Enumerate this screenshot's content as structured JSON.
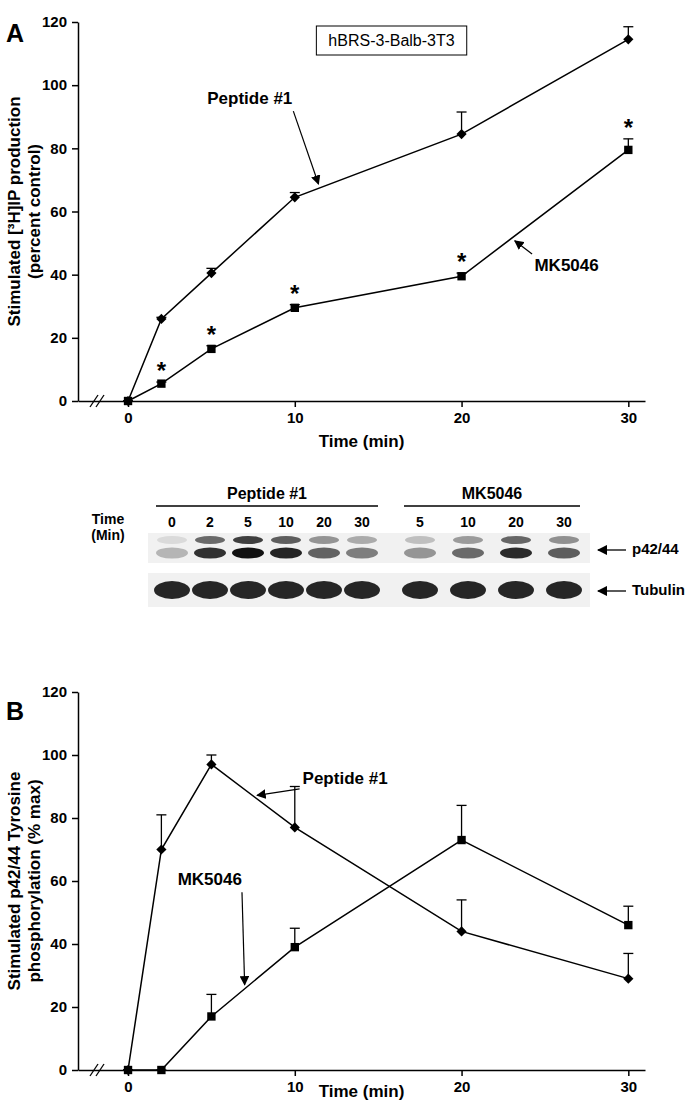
{
  "chart_data": [
    {
      "panel": "A",
      "type": "line",
      "title": "hBRS-3-Balb-3T3",
      "xlabel": "Time (min)",
      "ylabel": [
        "Stimulated [³H]IP production",
        "(percent control)"
      ],
      "xlim": [
        -3,
        31
      ],
      "xticks": [
        0,
        10,
        20,
        30
      ],
      "ylim": [
        0,
        120
      ],
      "yticks": [
        0,
        20,
        40,
        60,
        80,
        100,
        120
      ],
      "x": [
        0,
        2,
        5,
        10,
        20,
        30
      ],
      "series": [
        {
          "name": "Peptide #1",
          "color": "#000000",
          "marker": "diamond",
          "line_style": "solid",
          "values": [
            0,
            26,
            40.5,
            64.5,
            84.5,
            114.5
          ],
          "errors": [
            0,
            0.5,
            1.5,
            1.5,
            7,
            4
          ]
        },
        {
          "name": "MK5046",
          "color": "#000000",
          "marker": "square",
          "line_style": "solid",
          "values": [
            0,
            5.5,
            16.5,
            29.5,
            39.5,
            79.5
          ],
          "errors": [
            0,
            0.5,
            1,
            1,
            1,
            3.5
          ]
        }
      ],
      "significance": {
        "label": "*",
        "series": 1,
        "x": [
          2,
          5,
          10,
          20,
          30
        ]
      }
    },
    {
      "panel": "B",
      "type": "line",
      "xlabel": "Time (min)",
      "ylabel": [
        "Stimulated p42/44 Tyrosine",
        "phosphorylation (% max)"
      ],
      "xlim": [
        -3,
        31
      ],
      "xticks": [
        0,
        10,
        20,
        30
      ],
      "ylim": [
        0,
        120
      ],
      "yticks": [
        0,
        20,
        40,
        60,
        80,
        100,
        120
      ],
      "x": [
        0,
        2,
        5,
        10,
        20,
        30
      ],
      "series": [
        {
          "name": "Peptide #1",
          "color": "#000000",
          "marker": "diamond",
          "line_style": "solid",
          "values": [
            0,
            70,
            97,
            77,
            44,
            29
          ],
          "errors": [
            0,
            11,
            3,
            13,
            10,
            8
          ]
        },
        {
          "name": "MK5046",
          "color": "#000000",
          "marker": "square",
          "line_style": "solid",
          "values": [
            0,
            0,
            17,
            39,
            73,
            46
          ],
          "errors": [
            0,
            0,
            7,
            6,
            11,
            6
          ]
        }
      ]
    }
  ],
  "blot": {
    "time_label": [
      "Time",
      "(Min)"
    ],
    "lanes": [
      [
        0,
        2,
        5,
        10,
        20,
        30
      ],
      [
        5,
        10,
        20,
        30
      ]
    ],
    "bands": [
      "p42/44",
      "Tubulin"
    ]
  }
}
